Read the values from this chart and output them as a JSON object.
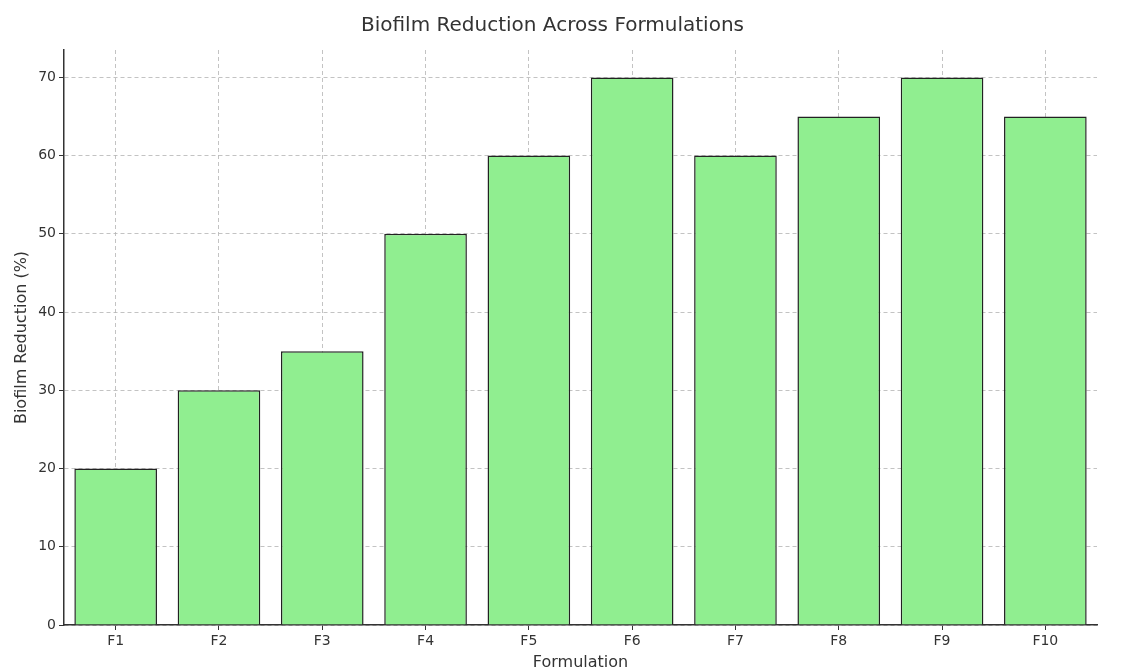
{
  "chart_data": {
    "type": "bar",
    "title": "Biofilm Reduction Across Formulations",
    "xlabel": "Formulation",
    "ylabel": "Biofilm Reduction (%)",
    "categories": [
      "F1",
      "F2",
      "F3",
      "F4",
      "F5",
      "F6",
      "F7",
      "F8",
      "F9",
      "F10"
    ],
    "values": [
      20,
      30,
      35,
      50,
      60,
      70,
      60,
      65,
      70,
      65
    ],
    "color": "#90ee90",
    "ylim": [
      0,
      73.5
    ],
    "yticks": [
      0,
      10,
      20,
      30,
      40,
      50,
      60,
      70
    ],
    "grid": true,
    "legend": false
  }
}
